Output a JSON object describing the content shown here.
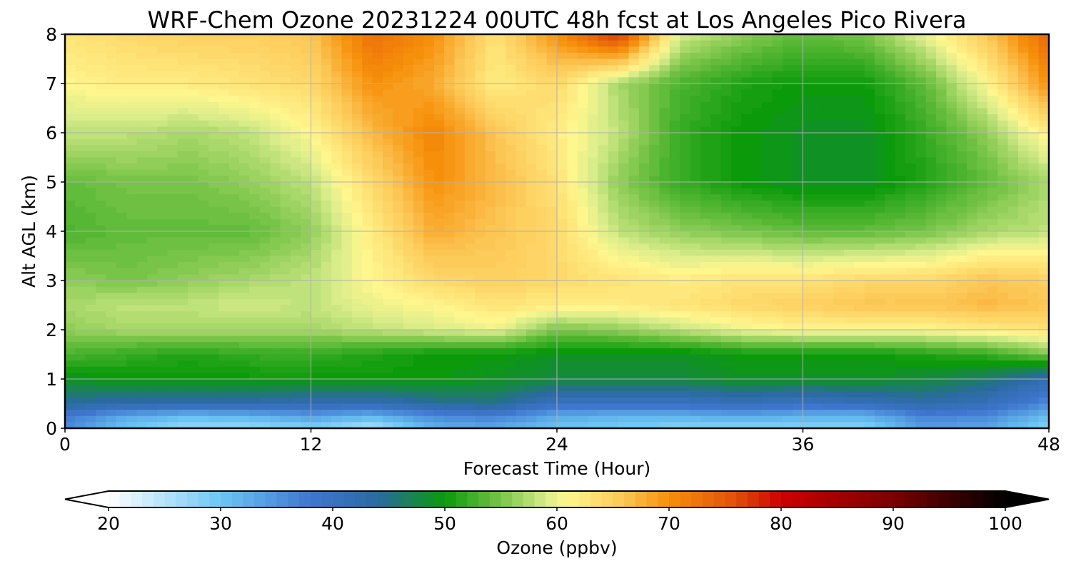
{
  "chart_data": {
    "type": "heatmap",
    "title": "WRF-Chem Ozone  20231224 00UTC 48h fcst at Los Angeles Pico Rivera",
    "xlabel": "Forecast Time (Hour)",
    "ylabel": "Alt AGL (km)",
    "xlim": [
      0,
      48
    ],
    "ylim": [
      0,
      8
    ],
    "x_ticks": [
      0,
      12,
      24,
      36,
      48
    ],
    "y_ticks": [
      0,
      1,
      2,
      3,
      4,
      5,
      6,
      7,
      8
    ],
    "grid": true,
    "x": [
      0,
      3,
      6,
      9,
      12,
      15,
      18,
      21,
      24,
      27,
      30,
      33,
      36,
      39,
      42,
      45,
      48
    ],
    "y": [
      0,
      0.25,
      0.5,
      1,
      1.5,
      2,
      2.5,
      3,
      4,
      5,
      6,
      7,
      8
    ],
    "z": [
      [
        36,
        30,
        27,
        27,
        28,
        25,
        32,
        33,
        30,
        29,
        28,
        28,
        28,
        28,
        34,
        33,
        28
      ],
      [
        38,
        33,
        31,
        32,
        34,
        32,
        36,
        37,
        33,
        32,
        32,
        33,
        32,
        32,
        37,
        36,
        31
      ],
      [
        44,
        43,
        43,
        43,
        42,
        42,
        44,
        45,
        40,
        40,
        40,
        41,
        40,
        41,
        43,
        41,
        36
      ],
      [
        49,
        50,
        50,
        50,
        50,
        50,
        50,
        49,
        48,
        48,
        48,
        49,
        49,
        49,
        48,
        46,
        42
      ],
      [
        53,
        52,
        51,
        52,
        52,
        51,
        50,
        50,
        49,
        49,
        49,
        50,
        50,
        50,
        51,
        52,
        55
      ],
      [
        56,
        57,
        57,
        57,
        57,
        58,
        59,
        60,
        55,
        56,
        58,
        60,
        61,
        61,
        61,
        62,
        63
      ],
      [
        57,
        58,
        58,
        59,
        58,
        60,
        61,
        63,
        62,
        62,
        63,
        64,
        65,
        66,
        66,
        67,
        66
      ],
      [
        56,
        55,
        56,
        57,
        58,
        61,
        64,
        65,
        64,
        63,
        62,
        63,
        63,
        64,
        64,
        66,
        65
      ],
      [
        53,
        54,
        54,
        54,
        56,
        62,
        68,
        66,
        64,
        58,
        56,
        55,
        54,
        54,
        55,
        57,
        58
      ],
      [
        54,
        55,
        55,
        56,
        58,
        64,
        70,
        67,
        63,
        56,
        52,
        50,
        49,
        49,
        51,
        54,
        57
      ],
      [
        58,
        58,
        57,
        58,
        61,
        67,
        71,
        66,
        62,
        58,
        52,
        50,
        49,
        49,
        52,
        56,
        62
      ],
      [
        61,
        62,
        62,
        63,
        64,
        70,
        68,
        62,
        64,
        57,
        53,
        51,
        50,
        50,
        54,
        61,
        70
      ],
      [
        63,
        64,
        65,
        65,
        66,
        73,
        70,
        63,
        70,
        78,
        59,
        56,
        54,
        55,
        60,
        66,
        74
      ]
    ],
    "colorbar": {
      "label": "Ozone  (ppbv)",
      "min": 20,
      "max": 100,
      "ticks": [
        20,
        30,
        40,
        50,
        60,
        70,
        80,
        90,
        100
      ],
      "extend": "both"
    }
  },
  "colors": {
    "stops": [
      [
        20,
        "#ffffff"
      ],
      [
        30,
        "#6cc6f4"
      ],
      [
        38,
        "#3f76cf"
      ],
      [
        44,
        "#2a6aa0"
      ],
      [
        50,
        "#0a9a0a"
      ],
      [
        55,
        "#78c448"
      ],
      [
        59,
        "#d8ec8a"
      ],
      [
        61,
        "#fff68e"
      ],
      [
        66,
        "#fcc654"
      ],
      [
        70,
        "#f68f0a"
      ],
      [
        76,
        "#e0500a"
      ],
      [
        80,
        "#cc0000"
      ],
      [
        90,
        "#7a0000"
      ],
      [
        100,
        "#000000"
      ]
    ]
  }
}
